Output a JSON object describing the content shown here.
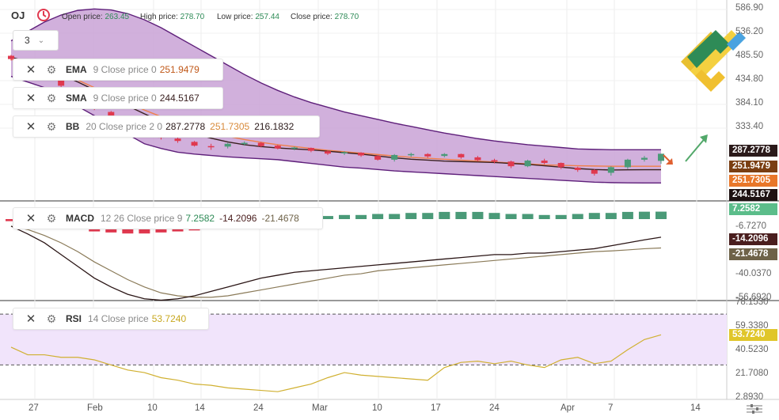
{
  "header": {
    "symbol": "OJ",
    "open_label": "Open price:",
    "open_value": "263.45",
    "high_label": "High price:",
    "high_value": "278.70",
    "low_label": "Low price:",
    "low_value": "257.44",
    "close_label": "Close price:",
    "close_value": "278.70",
    "timeframe": "3"
  },
  "indicators": {
    "ema": {
      "name": "EMA",
      "params": "9 Close price 0",
      "v1": "251.9479",
      "color": "#e07828"
    },
    "sma": {
      "name": "SMA",
      "params": "9 Close price 0",
      "v1": "244.5167",
      "color": "#3a1a1a"
    },
    "bb": {
      "name": "BB",
      "params": "20 Close price 2 0",
      "v1": "287.2778",
      "v2": "251.7305",
      "v3": "216.1832"
    },
    "macd": {
      "name": "MACD",
      "params": "12 26 Close price 9",
      "v1": "7.2582",
      "v2": "-14.2096",
      "v3": "-21.4678"
    },
    "rsi": {
      "name": "RSI",
      "params": "14 Close price",
      "v1": "53.7240"
    }
  },
  "price_axis": {
    "main": [
      "586.90",
      "536.20",
      "485.50",
      "434.80",
      "384.10",
      "333.40"
    ],
    "macd": [
      "-6.7270",
      "-40.0370",
      "-56.6920"
    ],
    "rsi": [
      "78.1530",
      "59.3380",
      "40.5230",
      "21.7080",
      "2.8930"
    ]
  },
  "price_tags": [
    {
      "text": "287.2778",
      "bg": "#2b1a1a",
      "fg": "#ffffff"
    },
    {
      "text": "251.9479",
      "bg": "#7a3e12",
      "fg": "#ffffff"
    },
    {
      "text": "251.7305",
      "bg": "#e8772a",
      "fg": "#ffffff"
    },
    {
      "text": "244.5167",
      "bg": "#1e1212",
      "fg": "#ffffff"
    },
    {
      "text": "7.2582",
      "bg": "#5bbd8a",
      "fg": "#ffffff"
    },
    {
      "text": "-14.2096",
      "bg": "#4a1e1e",
      "fg": "#ffffff"
    },
    {
      "text": "-21.4678",
      "bg": "#6e6248",
      "fg": "#ffffff"
    },
    {
      "text": "53.7240",
      "bg": "#e0c62a",
      "fg": "#ffffff"
    }
  ],
  "x_axis": [
    "27",
    "Feb",
    "10",
    "14",
    "24",
    "Mar",
    "10",
    "17",
    "24",
    "Apr",
    "7",
    "14"
  ],
  "colors": {
    "bull": "#4a9a78",
    "bear": "#e0394f",
    "bb_fill": "#c9a2d6",
    "bb_line": "#5e1f7a",
    "ema": "#f0804a",
    "sma": "#3a2020",
    "macd_line": "#2a1515",
    "macd_signal": "#8a7a58",
    "rsi_line": "#d0b030",
    "rsi_band": "#f1e4fb"
  },
  "chart_data": {
    "type": "candlestick",
    "series": [
      {
        "kind": "candles",
        "values": [
          {
            "o": 488,
            "h": 490,
            "l": 478,
            "c": 481
          },
          {
            "o": 476,
            "h": 478,
            "l": 458,
            "c": 460
          },
          {
            "o": 454,
            "h": 456,
            "l": 440,
            "c": 445
          },
          {
            "o": 438,
            "h": 442,
            "l": 420,
            "c": 424
          },
          {
            "o": 415,
            "h": 418,
            "l": 395,
            "c": 398
          },
          {
            "o": 390,
            "h": 392,
            "l": 372,
            "c": 375
          },
          {
            "o": 368,
            "h": 370,
            "l": 350,
            "c": 354
          },
          {
            "o": 348,
            "h": 350,
            "l": 333,
            "c": 336
          },
          {
            "o": 330,
            "h": 333,
            "l": 318,
            "c": 322
          },
          {
            "o": 316,
            "h": 320,
            "l": 309,
            "c": 313
          },
          {
            "o": 311,
            "h": 313,
            "l": 302,
            "c": 306
          },
          {
            "o": 304,
            "h": 306,
            "l": 294,
            "c": 296
          },
          {
            "o": 295,
            "h": 300,
            "l": 287,
            "c": 294
          },
          {
            "o": 294,
            "h": 302,
            "l": 290,
            "c": 300
          },
          {
            "o": 300,
            "h": 305,
            "l": 296,
            "c": 302
          },
          {
            "o": 302,
            "h": 304,
            "l": 292,
            "c": 295
          },
          {
            "o": 296,
            "h": 298,
            "l": 288,
            "c": 290
          },
          {
            "o": 290,
            "h": 294,
            "l": 286,
            "c": 292
          },
          {
            "o": 291,
            "h": 292,
            "l": 282,
            "c": 285
          },
          {
            "o": 284,
            "h": 286,
            "l": 276,
            "c": 279
          },
          {
            "o": 280,
            "h": 284,
            "l": 276,
            "c": 282
          },
          {
            "o": 281,
            "h": 282,
            "l": 272,
            "c": 275
          },
          {
            "o": 274,
            "h": 276,
            "l": 264,
            "c": 266
          },
          {
            "o": 266,
            "h": 278,
            "l": 262,
            "c": 276
          },
          {
            "o": 276,
            "h": 281,
            "l": 272,
            "c": 278
          },
          {
            "o": 278,
            "h": 280,
            "l": 270,
            "c": 273
          },
          {
            "o": 274,
            "h": 280,
            "l": 271,
            "c": 278
          },
          {
            "o": 278,
            "h": 279,
            "l": 268,
            "c": 271
          },
          {
            "o": 271,
            "h": 274,
            "l": 262,
            "c": 265
          },
          {
            "o": 265,
            "h": 268,
            "l": 258,
            "c": 262
          },
          {
            "o": 262,
            "h": 264,
            "l": 248,
            "c": 252
          },
          {
            "o": 252,
            "h": 266,
            "l": 250,
            "c": 264
          },
          {
            "o": 264,
            "h": 268,
            "l": 256,
            "c": 259
          },
          {
            "o": 259,
            "h": 260,
            "l": 246,
            "c": 250
          },
          {
            "o": 249,
            "h": 251,
            "l": 240,
            "c": 244
          },
          {
            "o": 244,
            "h": 246,
            "l": 232,
            "c": 236
          },
          {
            "o": 238,
            "h": 252,
            "l": 232,
            "c": 250
          },
          {
            "o": 250,
            "h": 268,
            "l": 246,
            "c": 266
          },
          {
            "o": 266,
            "h": 274,
            "l": 262,
            "c": 270
          },
          {
            "o": 263.45,
            "h": 278.7,
            "l": 257.44,
            "c": 278.7
          }
        ]
      },
      {
        "kind": "bb_upper",
        "values": [
          520,
          540,
          560,
          575,
          585,
          588,
          586,
          578,
          565,
          548,
          528,
          508,
          488,
          468,
          448,
          430,
          414,
          400,
          388,
          378,
          368,
          360,
          352,
          344,
          337,
          330,
          323,
          317,
          311,
          306,
          302,
          298,
          295,
          292,
          289,
          288,
          287.3,
          287.3,
          287.3,
          287.3
        ]
      },
      {
        "kind": "bb_middle",
        "values": [
          482,
          478,
          474,
          468,
          462,
          456,
          448,
          440,
          430,
          420,
          410,
          400,
          390,
          380,
          370,
          360,
          350,
          342,
          334,
          326,
          318,
          310,
          303,
          296,
          290,
          285,
          280,
          276,
          272,
          268,
          264,
          260,
          257,
          255,
          253,
          252,
          251.7,
          251.7,
          251.7,
          251.7
        ]
      },
      {
        "kind": "bb_lower",
        "values": [
          444,
          432,
          420,
          400,
          380,
          360,
          340,
          320,
          300,
          290,
          282,
          278,
          275,
          272,
          270,
          268,
          266,
          262,
          258,
          254,
          250,
          248,
          245,
          242,
          240,
          238,
          236,
          234,
          232,
          230,
          228,
          226,
          224,
          222,
          220,
          218,
          217,
          216.5,
          216.3,
          216.2
        ]
      },
      {
        "kind": "ema",
        "values": [
          480,
          472,
          462,
          450,
          436,
          420,
          404,
          388,
          372,
          358,
          345,
          334,
          324,
          316,
          309,
          303,
          298,
          294,
          290,
          286,
          283,
          280,
          277,
          274,
          271,
          269,
          267,
          265,
          263,
          261,
          259,
          257,
          255,
          254,
          253,
          252.5,
          252,
          252,
          252,
          251.9
        ]
      },
      {
        "kind": "sma",
        "values": [
          485,
          475,
          462,
          448,
          432,
          415,
          398,
          381,
          364,
          348,
          334,
          322,
          312,
          304,
          298,
          294,
          291,
          289,
          287,
          284,
          281,
          278,
          274,
          270,
          267,
          265,
          263,
          262,
          261,
          260,
          258,
          256,
          253,
          250,
          247,
          245,
          244,
          244.4,
          244.5,
          244.5
        ]
      }
    ],
    "macd": {
      "hist": [
        -2,
        -4,
        -6,
        -8,
        -10,
        -12,
        -13,
        -14,
        -14,
        -13,
        -12,
        -11,
        -9,
        -7,
        -5,
        -3,
        -1,
        1,
        2,
        3,
        4,
        4,
        5,
        5,
        6,
        6,
        7,
        7,
        7,
        6,
        5,
        5,
        4,
        4,
        5,
        6,
        6,
        7,
        7.2,
        7.26
      ],
      "macd": [
        -6.7,
        -12,
        -18,
        -26,
        -34,
        -42,
        -48,
        -53,
        -56,
        -57,
        -56,
        -54,
        -51,
        -48,
        -45,
        -42,
        -40,
        -38,
        -37,
        -36,
        -35,
        -34,
        -33,
        -32,
        -31,
        -30,
        -29,
        -28,
        -27,
        -26,
        -26,
        -25,
        -25,
        -24,
        -23,
        -22,
        -20,
        -18,
        -16,
        -14.2
      ],
      "signal": [
        -6.7,
        -9,
        -13,
        -18,
        -24,
        -31,
        -37,
        -43,
        -48,
        -52,
        -54,
        -55,
        -55,
        -54,
        -52,
        -50,
        -48,
        -46,
        -44,
        -42,
        -40,
        -39,
        -37,
        -36,
        -35,
        -34,
        -33,
        -32,
        -31,
        -30,
        -29,
        -28,
        -27,
        -26,
        -25,
        -24,
        -23.5,
        -22.8,
        -22,
        -21.5
      ]
    },
    "rsi": {
      "values": [
        44,
        38,
        38,
        36,
        36,
        34,
        30,
        26,
        24,
        20,
        18,
        15,
        14,
        12,
        11,
        10,
        9,
        12,
        15,
        20,
        24,
        22,
        21,
        20,
        19,
        18,
        28,
        32,
        33,
        31,
        33,
        30,
        28,
        34,
        36,
        31,
        33,
        42,
        50,
        53.7
      ],
      "upper": 70,
      "lower": 30
    }
  }
}
